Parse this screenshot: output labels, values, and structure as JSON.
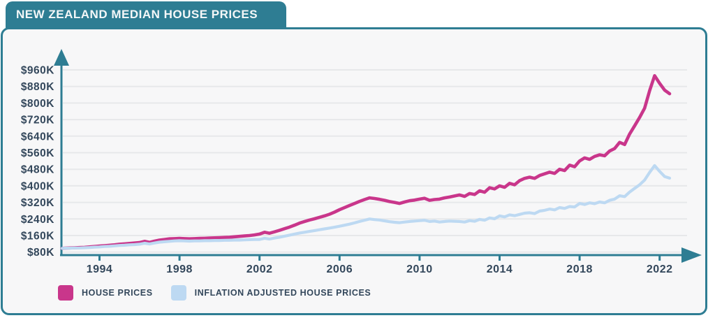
{
  "header": {
    "title": "NEW ZEALAND MEDIAN HOUSE PRICES"
  },
  "colors": {
    "teal": "#2E7D93",
    "card_background": "#F7F7F8",
    "text_navy": "#33475B",
    "gridline": "#E7E8EA",
    "house_prices": "#C9368B",
    "inflation_adjusted": "#BDD9F2",
    "page_background": "#FFFFFF"
  },
  "legend": {
    "items": [
      {
        "label": "HOUSE PRICES",
        "color": "#C9368B"
      },
      {
        "label": "INFLATION ADJUSTED HOUSE PRICES",
        "color": "#BDD9F2"
      }
    ]
  },
  "chart_data": {
    "type": "line",
    "title": "NEW ZEALAND MEDIAN HOUSE PRICES",
    "unit": "NZD thousands",
    "grid": true,
    "legend_position": "bottom-left",
    "x_start": 1992.0,
    "x_step": 0.25,
    "x_end": 2022.5,
    "x_ticks": [
      1994,
      1998,
      2002,
      2006,
      2010,
      2014,
      2018,
      2022
    ],
    "x_tick_labels": [
      "1994",
      "1998",
      "2002",
      "2006",
      "2010",
      "2014",
      "2018",
      "2022"
    ],
    "y_ticks": [
      80,
      160,
      240,
      320,
      400,
      480,
      560,
      640,
      720,
      800,
      880,
      960
    ],
    "y_tick_labels": [
      "$80K",
      "$160K",
      "$240K",
      "$320K",
      "$400K",
      "$480K",
      "$560K",
      "$640K",
      "$720K",
      "$800K",
      "$880K",
      "$960K"
    ],
    "ylim": [
      80,
      960
    ],
    "series": [
      {
        "name": "HOUSE PRICES",
        "color": "#C9368B",
        "values": [
          98,
          99,
          100,
          101,
          102,
          103,
          105,
          107,
          109,
          111,
          113,
          115,
          118,
          120,
          122,
          124,
          126,
          132,
          127,
          133,
          138,
          141,
          144,
          145,
          146,
          145,
          144,
          145,
          146,
          147,
          148,
          149,
          150,
          151,
          152,
          154,
          156,
          158,
          160,
          163,
          167,
          176,
          171,
          178,
          185,
          193,
          201,
          210,
          220,
          228,
          235,
          241,
          248,
          255,
          263,
          273,
          285,
          295,
          305,
          315,
          325,
          334,
          342,
          339,
          335,
          330,
          324,
          320,
          315,
          322,
          328,
          331,
          336,
          340,
          330,
          334,
          336,
          342,
          346,
          351,
          356,
          349,
          363,
          358,
          376,
          369,
          391,
          385,
          400,
          393,
          412,
          405,
          425,
          436,
          442,
          436,
          450,
          458,
          466,
          460,
          480,
          474,
          500,
          492,
          520,
          535,
          528,
          542,
          550,
          545,
          568,
          580,
          610,
          600,
          650,
          690,
          730,
          775,
          860,
          932,
          895,
          862,
          845
        ]
      },
      {
        "name": "INFLATION ADJUSTED HOUSE PRICES",
        "color": "#BDD9F2",
        "values": [
          98,
          99,
          99,
          100,
          100,
          101,
          102,
          104,
          105,
          107,
          108,
          110,
          112,
          113,
          115,
          116,
          118,
          123,
          119,
          124,
          128,
          130,
          132,
          134,
          135,
          134,
          133,
          134,
          134,
          135,
          135,
          136,
          136,
          137,
          137,
          138,
          138,
          139,
          140,
          141,
          141,
          147,
          143,
          148,
          152,
          157,
          162,
          167,
          172,
          176,
          180,
          184,
          188,
          192,
          196,
          200,
          205,
          210,
          215,
          221,
          228,
          234,
          240,
          237,
          235,
          231,
          227,
          224,
          222,
          225,
          228,
          230,
          232,
          234,
          228,
          230,
          225,
          228,
          230,
          229,
          228,
          225,
          232,
          229,
          238,
          234,
          245,
          241,
          255,
          250,
          260,
          256,
          262,
          268,
          270,
          266,
          278,
          282,
          288,
          284,
          295,
          291,
          300,
          298,
          315,
          310,
          318,
          314,
          322,
          318,
          330,
          336,
          352,
          348,
          370,
          388,
          405,
          428,
          465,
          498,
          470,
          445,
          437
        ]
      }
    ]
  }
}
